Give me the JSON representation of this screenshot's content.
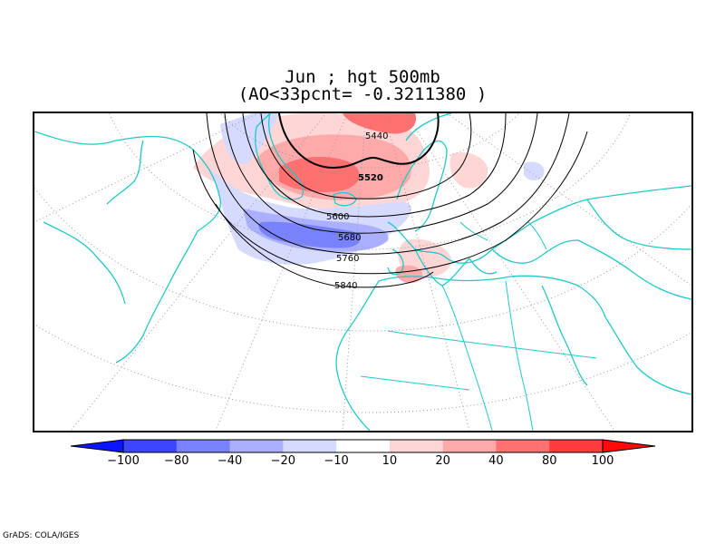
{
  "title": {
    "line1": "Jun ; hgt 500mb",
    "line2": "(AO<33pcnt=  -0.3211380    )"
  },
  "map": {
    "contour_labels": [
      "5440",
      "5520",
      "5600",
      "5680",
      "5760",
      "5840"
    ],
    "coast_color": "#22c8c8",
    "grid_color": "#9a9a9a"
  },
  "colorbar": {
    "tick_labels": [
      "-100",
      "-80",
      "-40",
      "-20",
      "-10",
      "10",
      "20",
      "40",
      "80",
      "100"
    ],
    "colors": [
      "#0a14ff",
      "#3c46ff",
      "#7882ff",
      "#aab0ff",
      "#d6daff",
      "#ffffff",
      "#ffd6d6",
      "#ffaaaa",
      "#ff7070",
      "#ff3c3c",
      "#ff0a0a"
    ]
  },
  "credit": "GrADS: COLA/IGES"
}
